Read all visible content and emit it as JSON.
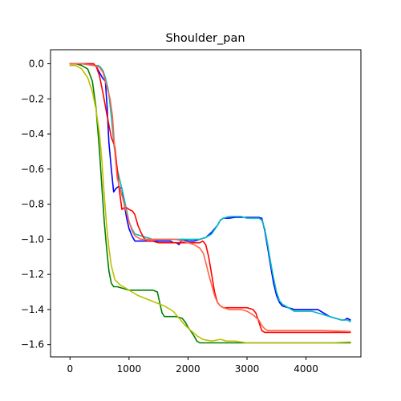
{
  "chart_data": {
    "type": "line",
    "title": "Shoulder_pan",
    "xlabel": "",
    "ylabel": "",
    "xlim": [
      -330,
      4930
    ],
    "ylim": [
      -1.67,
      0.08
    ],
    "xticks": [
      0,
      1000,
      2000,
      3000,
      4000
    ],
    "xtick_labels": [
      "0",
      "1000",
      "2000",
      "3000",
      "4000"
    ],
    "yticks": [
      0.0,
      -0.2,
      -0.4,
      -0.6,
      -0.8,
      -1.0,
      -1.2,
      -1.4,
      -1.6
    ],
    "ytick_labels": [
      "0.0",
      "−0.2",
      "−0.4",
      "−0.6",
      "−0.8",
      "−1.0",
      "−1.2",
      "−1.4",
      "−1.6"
    ],
    "grid": false,
    "series": [
      {
        "color": "#0000ff",
        "x": [
          0,
          200,
          400,
          450,
          500,
          550,
          600,
          630,
          660,
          700,
          740,
          780,
          820,
          880,
          920,
          960,
          1000,
          1050,
          1100,
          1200,
          1300,
          1400,
          1500,
          1600,
          1700,
          1750,
          1800,
          1850,
          1900,
          2000,
          2100,
          2200,
          2300,
          2400,
          2500,
          2550,
          2600,
          2700,
          2800,
          2900,
          3000,
          3100,
          3200,
          3250,
          3300,
          3350,
          3400,
          3450,
          3500,
          3550,
          3600,
          3700,
          3800,
          3900,
          4000,
          4100,
          4200,
          4300,
          4400,
          4500,
          4600,
          4650,
          4700,
          4750
        ],
        "y": [
          0.0,
          0.0,
          0.0,
          -0.02,
          -0.05,
          -0.08,
          -0.1,
          -0.25,
          -0.45,
          -0.6,
          -0.73,
          -0.71,
          -0.7,
          -0.71,
          -0.8,
          -0.88,
          -0.94,
          -0.98,
          -1.01,
          -1.01,
          -1.01,
          -1.01,
          -1.01,
          -1.01,
          -1.01,
          -1.02,
          -1.02,
          -1.03,
          -1.0,
          -1.01,
          -1.01,
          -1.0,
          -0.99,
          -0.96,
          -0.92,
          -0.89,
          -0.88,
          -0.88,
          -0.875,
          -0.875,
          -0.875,
          -0.875,
          -0.875,
          -0.88,
          -0.95,
          -1.05,
          -1.15,
          -1.25,
          -1.32,
          -1.36,
          -1.38,
          -1.39,
          -1.4,
          -1.4,
          -1.4,
          -1.4,
          -1.4,
          -1.42,
          -1.44,
          -1.45,
          -1.46,
          -1.46,
          -1.45,
          -1.46
        ]
      },
      {
        "color": "#00bfbf",
        "x": [
          0,
          200,
          400,
          480,
          520,
          560,
          600,
          650,
          700,
          750,
          800,
          850,
          900,
          950,
          1000,
          1050,
          1100,
          1200,
          1300,
          1400,
          1500,
          1600,
          1700,
          1800,
          1900,
          2000,
          2100,
          2200,
          2300,
          2400,
          2500,
          2550,
          2600,
          2700,
          2800,
          2900,
          3000,
          3100,
          3200,
          3250,
          3300,
          3350,
          3400,
          3450,
          3500,
          3550,
          3600,
          3700,
          3800,
          3900,
          4000,
          4100,
          4200,
          4300,
          4400,
          4500,
          4600,
          4700,
          4750
        ],
        "y": [
          0.0,
          0.0,
          -0.01,
          -0.01,
          -0.02,
          -0.04,
          -0.08,
          -0.15,
          -0.3,
          -0.48,
          -0.6,
          -0.67,
          -0.74,
          -0.82,
          -0.9,
          -0.94,
          -0.97,
          -0.98,
          -0.99,
          -1.0,
          -1.0,
          -1.0,
          -1.0,
          -1.0,
          -1.0,
          -1.0,
          -1.0,
          -1.0,
          -0.99,
          -0.97,
          -0.92,
          -0.89,
          -0.88,
          -0.87,
          -0.87,
          -0.87,
          -0.88,
          -0.88,
          -0.88,
          -0.89,
          -0.94,
          -1.03,
          -1.13,
          -1.22,
          -1.3,
          -1.35,
          -1.37,
          -1.39,
          -1.41,
          -1.41,
          -1.41,
          -1.41,
          -1.42,
          -1.43,
          -1.44,
          -1.45,
          -1.46,
          -1.46,
          -1.47
        ]
      },
      {
        "color": "#008000",
        "x": [
          0,
          100,
          200,
          300,
          380,
          440,
          500,
          540,
          580,
          620,
          660,
          700,
          740,
          800,
          900,
          1000,
          1100,
          1200,
          1300,
          1400,
          1480,
          1520,
          1560,
          1600,
          1700,
          1800,
          1900,
          1950,
          2000,
          2100,
          2150,
          2200,
          2300,
          2500,
          2800,
          3000,
          3500,
          4000,
          4500,
          4750
        ],
        "y": [
          0.0,
          0.0,
          -0.01,
          -0.03,
          -0.1,
          -0.25,
          -0.5,
          -0.7,
          -0.9,
          -1.05,
          -1.18,
          -1.25,
          -1.27,
          -1.27,
          -1.28,
          -1.29,
          -1.29,
          -1.29,
          -1.29,
          -1.29,
          -1.3,
          -1.36,
          -1.42,
          -1.44,
          -1.44,
          -1.44,
          -1.45,
          -1.47,
          -1.5,
          -1.55,
          -1.58,
          -1.59,
          -1.59,
          -1.59,
          -1.59,
          -1.59,
          -1.59,
          -1.59,
          -1.59,
          -1.59
        ]
      },
      {
        "color": "#bfbf00",
        "x": [
          0,
          100,
          200,
          300,
          380,
          440,
          500,
          540,
          580,
          620,
          660,
          700,
          760,
          850,
          950,
          1050,
          1150,
          1300,
          1450,
          1600,
          1750,
          1850,
          1950,
          2050,
          2150,
          2250,
          2400,
          2550,
          2650,
          2800,
          3000,
          3200,
          3500,
          3800,
          4100,
          4400,
          4750
        ],
        "y": [
          -0.01,
          -0.01,
          -0.03,
          -0.08,
          -0.16,
          -0.26,
          -0.4,
          -0.55,
          -0.75,
          -0.92,
          -1.05,
          -1.15,
          -1.23,
          -1.26,
          -1.28,
          -1.3,
          -1.32,
          -1.34,
          -1.36,
          -1.38,
          -1.41,
          -1.45,
          -1.49,
          -1.52,
          -1.55,
          -1.57,
          -1.58,
          -1.57,
          -1.58,
          -1.58,
          -1.59,
          -1.59,
          -1.59,
          -1.59,
          -1.59,
          -1.59,
          -1.585
        ]
      },
      {
        "color": "#ff0000",
        "x": [
          0,
          200,
          400,
          450,
          500,
          560,
          620,
          700,
          760,
          800,
          840,
          880,
          920,
          960,
          1000,
          1060,
          1100,
          1150,
          1200,
          1250,
          1300,
          1400,
          1500,
          1600,
          1700,
          1800,
          1900,
          2000,
          2100,
          2200,
          2250,
          2300,
          2350,
          2400,
          2450,
          2500,
          2550,
          2600,
          2700,
          2800,
          2900,
          3000,
          3100,
          3150,
          3200,
          3250,
          3300,
          3400,
          3500,
          3700,
          4000,
          4300,
          4750
        ],
        "y": [
          0.0,
          0.0,
          0.0,
          -0.02,
          -0.07,
          -0.17,
          -0.28,
          -0.42,
          -0.47,
          -0.6,
          -0.73,
          -0.83,
          -0.82,
          -0.82,
          -0.83,
          -0.84,
          -0.86,
          -0.92,
          -0.96,
          -0.99,
          -1.01,
          -1.01,
          -1.02,
          -1.02,
          -1.02,
          -1.02,
          -1.02,
          -1.02,
          -1.02,
          -1.02,
          -1.01,
          -1.03,
          -1.1,
          -1.2,
          -1.3,
          -1.36,
          -1.38,
          -1.39,
          -1.39,
          -1.39,
          -1.39,
          -1.39,
          -1.4,
          -1.42,
          -1.47,
          -1.52,
          -1.53,
          -1.53,
          -1.53,
          -1.53,
          -1.53,
          -1.53,
          -1.53
        ]
      },
      {
        "color": "#ff6347",
        "x": [
          0,
          200,
          400,
          500,
          560,
          600,
          640,
          680,
          720,
          760,
          800,
          840,
          880,
          920,
          960,
          1000,
          1050,
          1100,
          1200,
          1300,
          1400,
          1500,
          1600,
          1700,
          1800,
          1900,
          2000,
          2100,
          2200,
          2260,
          2300,
          2350,
          2400,
          2450,
          2500,
          2550,
          2600,
          2700,
          2800,
          2900,
          3000,
          3100,
          3200,
          3250,
          3300,
          3350,
          3400,
          3500,
          3700,
          4000,
          4300,
          4750
        ],
        "y": [
          0.0,
          0.0,
          -0.01,
          -0.02,
          -0.05,
          -0.1,
          -0.15,
          -0.2,
          -0.3,
          -0.5,
          -0.65,
          -0.7,
          -0.75,
          -0.8,
          -0.85,
          -0.9,
          -0.95,
          -0.98,
          -1.0,
          -1.0,
          -1.0,
          -1.0,
          -1.0,
          -1.0,
          -1.0,
          -1.01,
          -1.02,
          -1.03,
          -1.05,
          -1.08,
          -1.13,
          -1.2,
          -1.26,
          -1.32,
          -1.36,
          -1.38,
          -1.39,
          -1.4,
          -1.4,
          -1.4,
          -1.41,
          -1.43,
          -1.46,
          -1.49,
          -1.51,
          -1.52,
          -1.52,
          -1.52,
          -1.52,
          -1.52,
          -1.52,
          -1.525
        ]
      }
    ]
  }
}
